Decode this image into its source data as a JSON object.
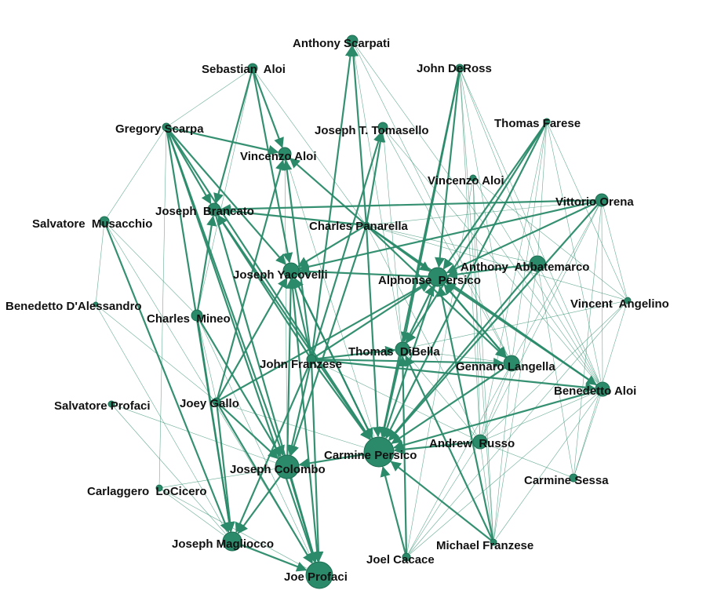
{
  "graph": {
    "node_color": "#2a8a6a",
    "edge_color": "#2a8a6a",
    "label_color": "#111111",
    "nodes": [
      {
        "id": "scarpati",
        "label": "Anthony Scarpati"
      },
      {
        "id": "sebastian_aloi",
        "label": "Sebastian  Aloi"
      },
      {
        "id": "deross",
        "label": "John DeRoss"
      },
      {
        "id": "scarpa",
        "label": "Gregory Scarpa"
      },
      {
        "id": "tomasello",
        "label": "Joseph T. Tomasello"
      },
      {
        "id": "farese",
        "label": "Thomas Farese"
      },
      {
        "id": "vincenzo1",
        "label": "Vincenzo Aloi"
      },
      {
        "id": "vincenzo2",
        "label": "Vincenzo Aloi"
      },
      {
        "id": "orena",
        "label": "Vittorio Orena"
      },
      {
        "id": "brancato",
        "label": "Joseph  Brancato"
      },
      {
        "id": "musacchio",
        "label": "Salvatore  Musacchio"
      },
      {
        "id": "panarella",
        "label": "Charles Panarella"
      },
      {
        "id": "abbatemarco",
        "label": "Anthony  Abbatemarco"
      },
      {
        "id": "yacovelli",
        "label": "Joseph Yacovelli"
      },
      {
        "id": "alphonse",
        "label": "Alphonse  Persico"
      },
      {
        "id": "dalessandro",
        "label": "Benedetto D'Alessandro"
      },
      {
        "id": "angelino",
        "label": "Vincent  Angelino"
      },
      {
        "id": "mineo",
        "label": "Charles  Mineo"
      },
      {
        "id": "dibella",
        "label": "Thomas  DiBella"
      },
      {
        "id": "franzese",
        "label": "John Franzese"
      },
      {
        "id": "langella",
        "label": "Gennaro Langella"
      },
      {
        "id": "benedetto",
        "label": "Benedetto Aloi"
      },
      {
        "id": "profaci_s",
        "label": "Salvatore Profaci"
      },
      {
        "id": "gallo",
        "label": "Joey Gallo"
      },
      {
        "id": "russo",
        "label": "Andrew  Russo"
      },
      {
        "id": "carmine",
        "label": "Carmine Persico"
      },
      {
        "id": "colombo",
        "label": "Joseph Colombo"
      },
      {
        "id": "sessa",
        "label": "Carmine Sessa"
      },
      {
        "id": "locicero",
        "label": "Carlaggero  LoCicero"
      },
      {
        "id": "magliocco",
        "label": "Joseph Magliocco"
      },
      {
        "id": "michael",
        "label": "Michael Franzese"
      },
      {
        "id": "cacace",
        "label": "Joel Cacace"
      },
      {
        "id": "joe_profaci",
        "label": "Joe Profaci"
      }
    ],
    "edges": [
      [
        "scarpa",
        "vincenzo1"
      ],
      [
        "scarpa",
        "brancato"
      ],
      [
        "scarpa",
        "yacovelli"
      ],
      [
        "scarpa",
        "colombo"
      ],
      [
        "scarpa",
        "magliocco"
      ],
      [
        "scarpa",
        "carmine"
      ],
      [
        "scarpa",
        "joe_profaci"
      ],
      [
        "sebastian_aloi",
        "vincenzo1"
      ],
      [
        "sebastian_aloi",
        "brancato"
      ],
      [
        "sebastian_aloi",
        "yacovelli"
      ],
      [
        "franzese",
        "scarpati"
      ],
      [
        "franzese",
        "tomasello"
      ],
      [
        "franzese",
        "vincenzo1"
      ],
      [
        "franzese",
        "brancato"
      ],
      [
        "franzese",
        "yacovelli"
      ],
      [
        "franzese",
        "alphonse"
      ],
      [
        "franzese",
        "carmine"
      ],
      [
        "franzese",
        "colombo"
      ],
      [
        "franzese",
        "magliocco"
      ],
      [
        "franzese",
        "joe_profaci"
      ],
      [
        "franzese",
        "langella"
      ],
      [
        "franzese",
        "benedetto"
      ],
      [
        "franzese",
        "dibella"
      ],
      [
        "panarella",
        "vincenzo1"
      ],
      [
        "panarella",
        "yacovelli"
      ],
      [
        "panarella",
        "alphonse"
      ],
      [
        "panarella",
        "carmine"
      ],
      [
        "panarella",
        "langella"
      ],
      [
        "panarella",
        "benedetto"
      ],
      [
        "panarella",
        "scarpati"
      ],
      [
        "panarella",
        "tomasello"
      ],
      [
        "panarella",
        "brancato"
      ],
      [
        "panarella",
        "colombo"
      ],
      [
        "orena",
        "alphonse"
      ],
      [
        "orena",
        "carmine"
      ],
      [
        "orena",
        "brancato"
      ],
      [
        "orena",
        "yacovelli"
      ],
      [
        "farese",
        "alphonse"
      ],
      [
        "farese",
        "dibella"
      ],
      [
        "farese",
        "carmine"
      ],
      [
        "deross",
        "alphonse"
      ],
      [
        "deross",
        "carmine"
      ],
      [
        "deross",
        "dibella"
      ],
      [
        "alphonse",
        "carmine"
      ],
      [
        "alphonse",
        "yacovelli"
      ],
      [
        "alphonse",
        "langella"
      ],
      [
        "gallo",
        "yacovelli"
      ],
      [
        "gallo",
        "vincenzo1"
      ],
      [
        "gallo",
        "alphonse"
      ],
      [
        "gallo",
        "colombo"
      ],
      [
        "gallo",
        "magliocco"
      ],
      [
        "gallo",
        "joe_profaci"
      ],
      [
        "mineo",
        "magliocco"
      ],
      [
        "mineo",
        "colombo"
      ],
      [
        "mineo",
        "brancato"
      ],
      [
        "musacchio",
        "magliocco"
      ],
      [
        "colombo",
        "magliocco"
      ],
      [
        "colombo",
        "joe_profaci"
      ],
      [
        "colombo",
        "yacovelli"
      ],
      [
        "carmine",
        "colombo"
      ],
      [
        "carmine",
        "yacovelli"
      ],
      [
        "langella",
        "carmine"
      ],
      [
        "langella",
        "alphonse"
      ],
      [
        "benedetto",
        "carmine"
      ],
      [
        "benedetto",
        "alphonse"
      ],
      [
        "cacace",
        "carmine"
      ],
      [
        "cacace",
        "dibella"
      ],
      [
        "michael",
        "carmine"
      ],
      [
        "michael",
        "dibella"
      ],
      [
        "michael",
        "alphonse"
      ],
      [
        "russo",
        "carmine"
      ],
      [
        "abbatemarco",
        "carmine"
      ],
      [
        "abbatemarco",
        "alphonse"
      ],
      [
        "dibella",
        "carmine"
      ],
      [
        "dibella",
        "alphonse"
      ],
      [
        "magliocco",
        "joe_profaci"
      ],
      [
        "yacovelli",
        "joe_profaci"
      ],
      [
        "yacovelli",
        "carmine"
      ],
      [
        "brancato",
        "joe_profaci"
      ],
      [
        "brancato",
        "carmine"
      ]
    ]
  }
}
